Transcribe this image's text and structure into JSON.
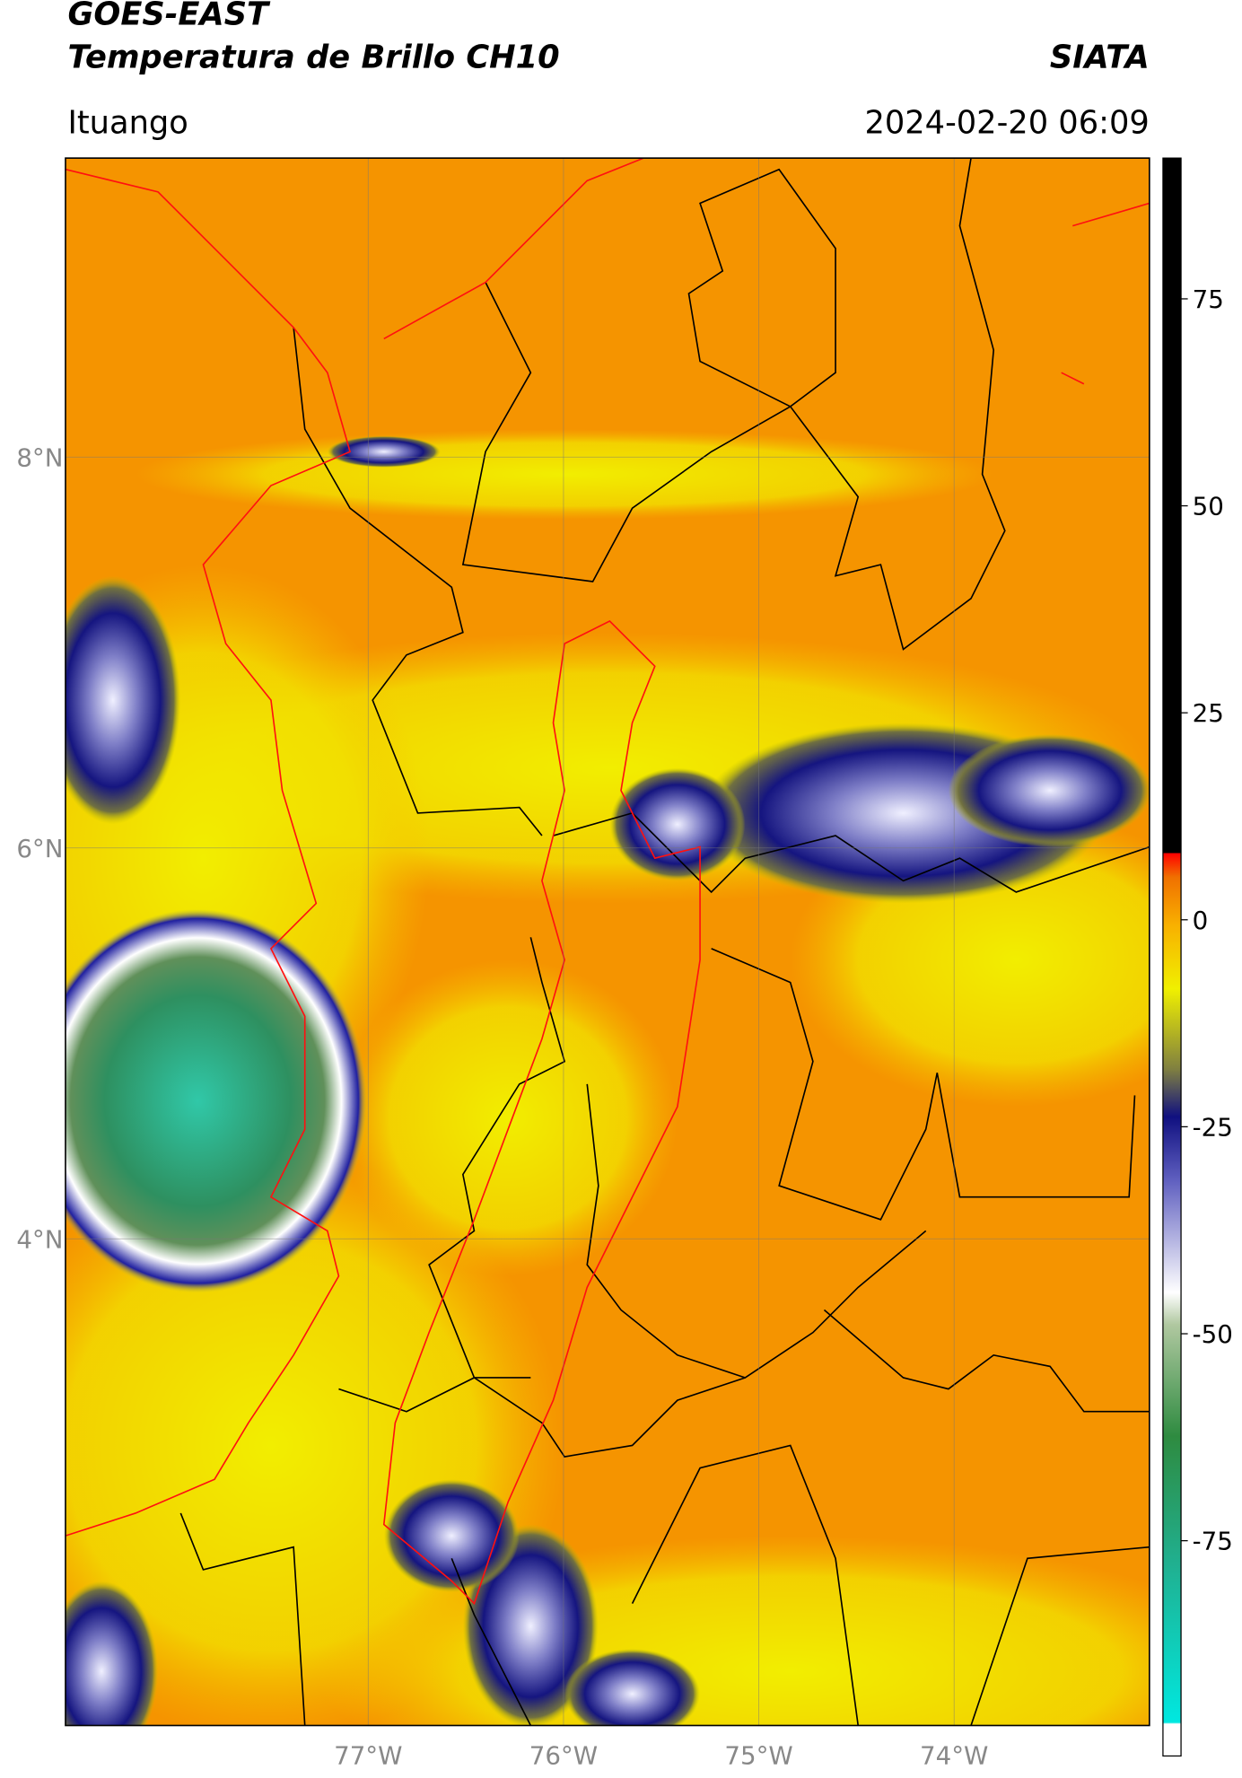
{
  "header": {
    "title": "GOES-EAST",
    "subtitle": "Temperatura de Brillo CH10",
    "source": "SIATA",
    "region": "Ituango",
    "datetime": "2024-02-20 06:09"
  },
  "map": {
    "lon_lim": [
      -78.55,
      -73.0
    ],
    "lat_lim": [
      1.51,
      9.53
    ],
    "lat_ticks": [
      {
        "value": 8,
        "label": "8°N"
      },
      {
        "value": 6,
        "label": "6°N"
      },
      {
        "value": 4,
        "label": "4°N"
      }
    ],
    "lon_ticks": [
      {
        "value": -77,
        "label": "77°W"
      },
      {
        "value": -76,
        "label": "76°W"
      },
      {
        "value": -75,
        "label": "75°W"
      },
      {
        "value": -74,
        "label": "74°W"
      }
    ],
    "grid": true
  },
  "colorbar": {
    "lim": [
      -101,
      92
    ],
    "ticks": [
      75,
      50,
      25,
      0,
      -25,
      -50,
      -75
    ]
  }
}
